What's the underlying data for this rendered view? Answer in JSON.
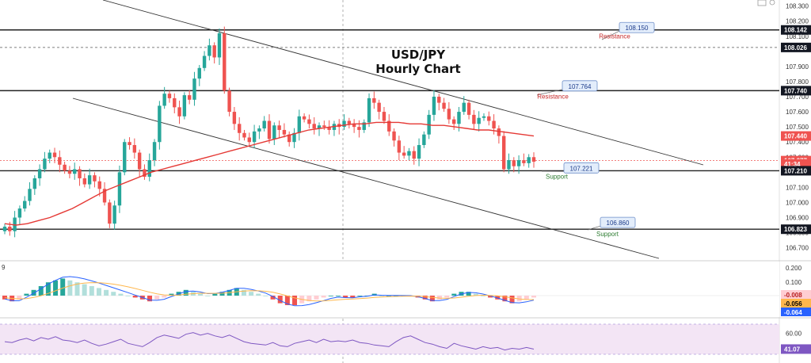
{
  "colors": {
    "up": "#26a69a",
    "down": "#ef5350",
    "ma": "#e53935",
    "hline": "#222222",
    "trend": "#333333",
    "macd_line": "#2962ff",
    "signal_line": "#ffb74d",
    "hist_up": "#26a69a",
    "hist_up_light": "#b2dfdb",
    "hist_down": "#ef5350",
    "hist_down_light": "#ffcdd2",
    "rsi_line": "#7e57c2",
    "rsi_band": "#f3e5f5",
    "callout_bg": "#e3edfb",
    "callout_border": "#6f8fc9",
    "resistance": "#c62828",
    "support": "#2e7d32"
  },
  "chart_data": [
    {
      "type": "candlestick",
      "title": "USD/JPY\nHourly Chart",
      "ylim": [
        106.63,
        108.34
      ],
      "y_ticks": [
        108.3,
        108.2,
        108.1,
        107.9,
        107.8,
        107.7,
        107.6,
        107.5,
        107.4,
        107.3,
        107.2,
        107.1,
        107.0,
        106.9,
        106.8,
        106.7
      ],
      "price_tags": [
        {
          "value": "108.142",
          "price": 108.142,
          "style": "dark"
        },
        {
          "value": "108.026",
          "price": 108.026,
          "style": "dark"
        },
        {
          "value": "107.740",
          "price": 107.74,
          "style": "dark"
        },
        {
          "value": "107.440",
          "price": 107.44,
          "style": "red"
        },
        {
          "value": "107.277",
          "price": 107.277,
          "style": "red"
        },
        {
          "value": "41:34",
          "price": 107.255,
          "style": "red"
        },
        {
          "value": "107.210",
          "price": 107.21,
          "style": "dark"
        },
        {
          "value": "106.823",
          "price": 106.823,
          "style": "dark"
        }
      ],
      "horizontal_levels": [
        108.142,
        107.74,
        107.21,
        106.823
      ],
      "dashed_level": 108.026,
      "current_price_level": 107.277,
      "callouts": [
        {
          "text": "108.150",
          "price": 108.15
        },
        {
          "text": "107.764",
          "price": 107.764
        },
        {
          "text": "107.221",
          "price": 107.221
        },
        {
          "text": "106.860",
          "price": 106.86
        }
      ],
      "annotations": [
        {
          "text": "Resistance",
          "kind": "resistance"
        },
        {
          "text": "Resistance",
          "kind": "resistance"
        },
        {
          "text": "Support",
          "kind": "support"
        },
        {
          "text": "Support",
          "kind": "support"
        }
      ],
      "close": [
        106.84,
        106.81,
        106.9,
        106.96,
        107.01,
        107.09,
        107.16,
        107.22,
        107.29,
        107.33,
        107.3,
        107.25,
        107.21,
        107.19,
        107.22,
        107.16,
        107.12,
        107.18,
        107.14,
        107.09,
        107.0,
        106.86,
        106.98,
        107.2,
        107.4,
        107.38,
        107.33,
        107.22,
        107.17,
        107.28,
        107.4,
        107.64,
        107.72,
        107.69,
        107.63,
        107.57,
        107.71,
        107.68,
        107.82,
        107.89,
        107.97,
        108.04,
        107.96,
        108.12,
        107.74,
        107.6,
        107.52,
        107.46,
        107.43,
        107.4,
        107.47,
        107.49,
        107.54,
        107.42,
        107.51,
        107.48,
        107.45,
        107.4,
        107.46,
        107.57,
        107.55,
        107.52,
        107.49,
        107.51,
        107.5,
        107.48,
        107.52,
        107.5,
        107.54,
        107.52,
        107.5,
        107.48,
        107.53,
        107.69,
        107.66,
        107.6,
        107.54,
        107.47,
        107.41,
        107.33,
        107.31,
        107.34,
        107.29,
        107.38,
        107.45,
        107.58,
        107.7,
        107.66,
        107.62,
        107.55,
        107.52,
        107.6,
        107.66,
        107.58,
        107.52,
        107.56,
        107.57,
        107.54,
        107.49,
        107.44,
        107.22,
        107.28,
        107.24,
        107.28,
        107.26,
        107.3,
        107.27
      ],
      "ma": [
        106.86,
        106.85,
        106.86,
        106.88,
        106.9,
        106.93,
        106.96,
        107.0,
        107.04,
        107.08,
        107.11,
        107.14,
        107.17,
        107.2,
        107.22,
        107.24,
        107.26,
        107.28,
        107.3,
        107.32,
        107.34,
        107.36,
        107.38,
        107.4,
        107.42,
        107.44,
        107.46,
        107.48,
        107.49,
        107.5,
        107.51,
        107.52,
        107.52,
        107.53,
        107.53,
        107.53,
        107.52,
        107.52,
        107.51,
        107.51,
        107.5,
        107.49,
        107.48,
        107.48,
        107.47,
        107.46,
        107.45,
        107.44
      ],
      "macd_yticks": [
        0.2,
        0.1,
        -0.008,
        -0.056,
        -0.064
      ],
      "macd_tags": [
        {
          "value": "-0.008",
          "style": "pink"
        },
        {
          "value": "-0.056",
          "style": "orange"
        },
        {
          "value": "-0.064",
          "style": "blue"
        }
      ],
      "rsi_yticks": [
        60.0,
        41.07
      ],
      "rsi_tags": [
        {
          "value": "41.07",
          "style": "purple"
        }
      ],
      "macd_hist": [
        -0.02,
        -0.03,
        -0.02,
        0.01,
        0.03,
        0.05,
        0.07,
        0.08,
        0.09,
        0.08,
        0.07,
        0.06,
        0.05,
        0.04,
        0.03,
        0.02,
        0.01,
        0.0,
        -0.01,
        -0.02,
        -0.03,
        -0.02,
        -0.01,
        0.01,
        0.02,
        0.03,
        0.02,
        0.01,
        0.0,
        0.01,
        0.02,
        0.03,
        0.04,
        0.03,
        0.02,
        0.01,
        0.0,
        -0.02,
        -0.04,
        -0.05,
        -0.05,
        -0.04,
        -0.03,
        -0.02,
        -0.01,
        0.0,
        0.0,
        -0.01,
        -0.01,
        0.0,
        0.0,
        0.01,
        0.0,
        0.0,
        0.0,
        0.0,
        0.0,
        -0.01,
        -0.02,
        -0.03,
        -0.02,
        -0.01,
        0.01,
        0.02,
        0.02,
        0.01,
        0.0,
        -0.01,
        -0.02,
        -0.03,
        -0.04,
        -0.03,
        -0.02,
        -0.01
      ],
      "rsi": [
        50,
        49,
        52,
        54,
        51,
        55,
        53,
        56,
        52,
        51,
        49,
        52,
        48,
        45,
        47,
        50,
        53,
        48,
        46,
        44,
        49,
        55,
        58,
        56,
        54,
        59,
        61,
        58,
        60,
        57,
        55,
        58,
        54,
        50,
        48,
        47,
        46,
        49,
        45,
        44,
        48,
        50,
        52,
        49,
        53,
        50,
        51,
        50,
        52,
        49,
        48,
        46,
        45,
        44,
        50,
        55,
        57,
        53,
        49,
        47,
        44,
        42,
        48,
        45,
        43,
        41,
        44,
        42,
        43,
        40,
        42,
        41,
        43,
        41
      ]
    }
  ]
}
